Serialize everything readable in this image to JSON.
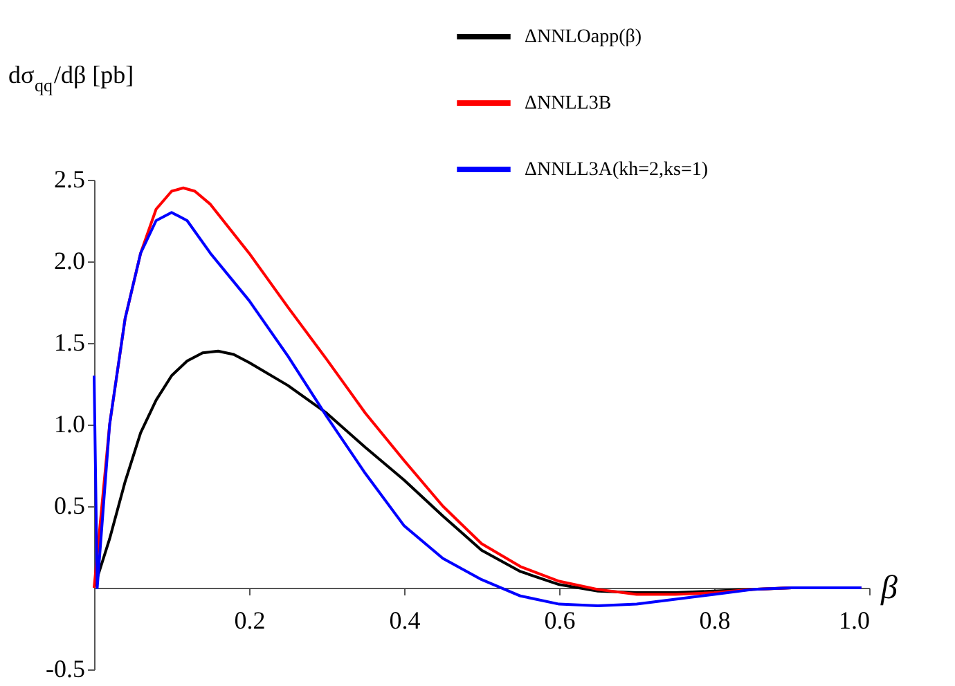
{
  "chart_data": {
    "type": "line",
    "xlabel": "β",
    "ylabel": "dσ$_{qq}$/dβ [pb]",
    "xlim": [
      0,
      1.0
    ],
    "ylim": [
      -0.5,
      2.5
    ],
    "xticks": [
      0.2,
      0.4,
      0.6,
      0.8,
      {
        "value": 1,
        "label": "1.0"
      }
    ],
    "yticks": [
      -0.5,
      0.5,
      {
        "value": 1,
        "label": "1.0"
      },
      1.5,
      {
        "value": 2,
        "label": "2.0"
      },
      2.5
    ],
    "grid": false,
    "legend": "top right",
    "marker": "none",
    "line_style": "solid",
    "series": [
      {
        "name": "ΔNNLOapp(β)",
        "color": "#000000",
        "x": [
          0,
          0.02,
          0.04,
          0.06,
          0.08,
          0.1,
          0.12,
          0.14,
          0.16,
          0.18,
          0.2,
          0.25,
          0.3,
          0.35,
          0.4,
          0.45,
          0.5,
          0.55,
          0.6,
          0.65,
          0.7,
          0.75,
          0.8,
          0.85,
          0.9,
          0.99
        ],
        "values": [
          0,
          0.3,
          0.65,
          0.95,
          1.15,
          1.3,
          1.39,
          1.44,
          1.45,
          1.43,
          1.38,
          1.24,
          1.07,
          0.86,
          0.66,
          0.44,
          0.23,
          0.1,
          0.02,
          -0.02,
          -0.03,
          -0.03,
          -0.02,
          -0.01,
          0,
          0
        ]
      },
      {
        "name": "ΔNNLL3B",
        "color": "#ff0000",
        "x": [
          0,
          0.02,
          0.04,
          0.06,
          0.08,
          0.1,
          0.115,
          0.13,
          0.15,
          0.2,
          0.25,
          0.3,
          0.35,
          0.4,
          0.45,
          0.5,
          0.55,
          0.6,
          0.65,
          0.7,
          0.75,
          0.8,
          0.85,
          0.9,
          0.99
        ],
        "values": [
          0,
          1.0,
          1.65,
          2.05,
          2.32,
          2.43,
          2.45,
          2.43,
          2.35,
          2.05,
          1.72,
          1.4,
          1.07,
          0.78,
          0.5,
          0.27,
          0.13,
          0.04,
          -0.01,
          -0.04,
          -0.04,
          -0.03,
          -0.01,
          0,
          0
        ]
      },
      {
        "name": "ΔNNLL3A(kh=2,ks=1)",
        "color": "#0000ff",
        "x": [
          0,
          0.004,
          0.02,
          0.04,
          0.06,
          0.08,
          0.1,
          0.12,
          0.15,
          0.2,
          0.25,
          0.3,
          0.35,
          0.4,
          0.45,
          0.5,
          0.55,
          0.6,
          0.65,
          0.7,
          0.75,
          0.8,
          0.85,
          0.9,
          0.99
        ],
        "values": [
          1.3,
          0,
          1.0,
          1.65,
          2.05,
          2.25,
          2.3,
          2.25,
          2.05,
          1.76,
          1.42,
          1.05,
          0.7,
          0.38,
          0.18,
          0.05,
          -0.05,
          -0.1,
          -0.11,
          -0.1,
          -0.07,
          -0.04,
          -0.01,
          0,
          0
        ]
      }
    ]
  }
}
